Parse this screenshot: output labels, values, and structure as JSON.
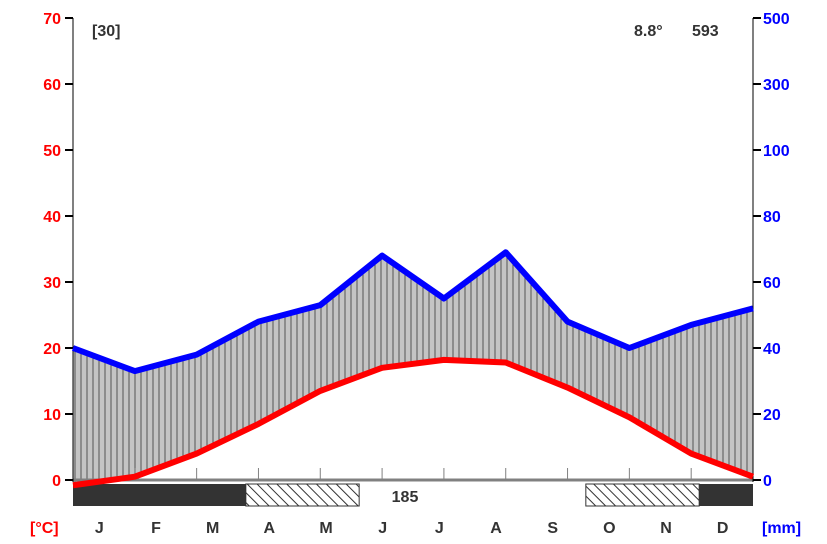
{
  "chart_data": {
    "type": "line",
    "kind": "climate-diagram",
    "title": "",
    "station_years": "[30]",
    "annual_mean_temp": "8.8°",
    "annual_precip": "593",
    "frost_free_days": "185",
    "categories": [
      "J",
      "F",
      "M",
      "A",
      "M",
      "J",
      "J",
      "A",
      "S",
      "O",
      "N",
      "D"
    ],
    "series": [
      {
        "name": "",
        "axis": "left",
        "unit": "°C",
        "color": "#ff0000",
        "values": [
          -0.8,
          0.5,
          4.0,
          8.5,
          13.5,
          17.0,
          18.2,
          17.8,
          14.0,
          9.5,
          4.0,
          0.5
        ]
      },
      {
        "name": "",
        "axis": "right",
        "unit": "mm",
        "color": "#0000ff",
        "values": [
          40,
          33,
          38,
          48,
          53,
          68,
          55,
          69,
          48,
          40,
          47,
          52
        ]
      }
    ],
    "left_axis": {
      "label": "[°C]",
      "color": "#ff0000",
      "ticks": [
        "0",
        "10",
        "20",
        "30",
        "40",
        "50",
        "60",
        "70"
      ],
      "ylim": [
        0,
        70
      ]
    },
    "right_axis": {
      "label": "[mm]",
      "color": "#0000ff",
      "ticks": [
        "0",
        "20",
        "40",
        "60",
        "80",
        "100",
        "300",
        "500"
      ],
      "ylim": [
        0,
        500
      ],
      "scale": "precip 0–100 mm at 10°C = 20 mm; above 100 mm compressed 1:10"
    },
    "frost_bar": {
      "certain_frost_months": [
        "Jan",
        "Feb",
        "Mar",
        "Dec"
      ],
      "possible_frost_months": [
        "Apr",
        "May",
        "Oct",
        "Nov"
      ],
      "certain_color": "#333333"
    },
    "humid_fill": "vertical gray hatching"
  }
}
